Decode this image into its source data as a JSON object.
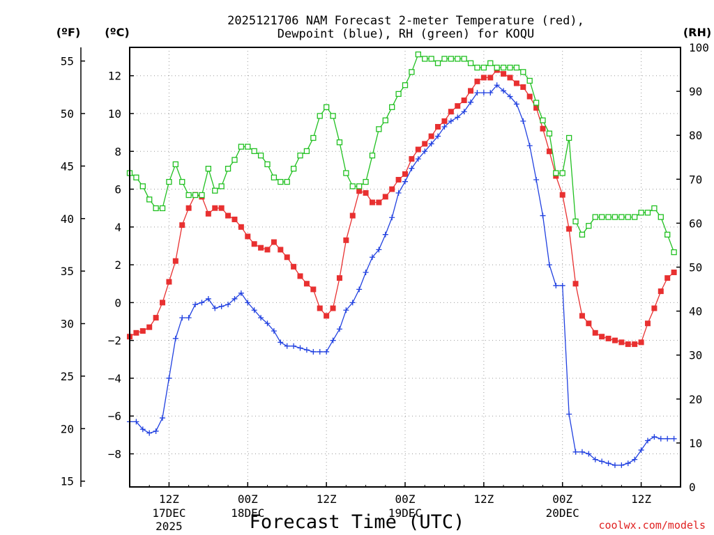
{
  "chart_data": {
    "type": "line",
    "title_line1": "2025121706 NAM Forecast 2-meter Temperature (red),",
    "title_line2": "Dewpoint (blue), RH (green) for KOQU",
    "xlabel": "Forecast Time (UTC)",
    "credit": "coolwx.com/models",
    "left_outer_unit": "(ºF)",
    "left_inner_unit": "(ºC)",
    "right_unit": "(RH)",
    "x_start_hour": 6,
    "x_end_hour": 90,
    "ylim_c": [
      -9.75,
      13.5
    ],
    "ylim_rh": [
      0,
      100
    ],
    "x_ticks": [
      {
        "hour": 12,
        "label": "12Z",
        "label2": "17DEC",
        "label3": "2025"
      },
      {
        "hour": 24,
        "label": "00Z",
        "label2": "18DEC",
        "label3": ""
      },
      {
        "hour": 36,
        "label": "12Z",
        "label2": "",
        "label3": ""
      },
      {
        "hour": 48,
        "label": "00Z",
        "label2": "19DEC",
        "label3": ""
      },
      {
        "hour": 60,
        "label": "12Z",
        "label2": "",
        "label3": ""
      },
      {
        "hour": 72,
        "label": "00Z",
        "label2": "20DEC",
        "label3": ""
      },
      {
        "hour": 84,
        "label": "12Z",
        "label2": "",
        "label3": ""
      }
    ],
    "yticks_c": [
      -8,
      -6,
      -4,
      -2,
      0,
      2,
      4,
      6,
      8,
      10,
      12
    ],
    "yticks_f": [
      15,
      20,
      25,
      30,
      35,
      40,
      45,
      50,
      55
    ],
    "yticks_rh": [
      0,
      10,
      20,
      30,
      40,
      50,
      60,
      70,
      80,
      90,
      100
    ],
    "series": [
      {
        "name": "Temperature",
        "color": "#e83030",
        "marker": "filled-square",
        "axis": "c",
        "values": [
          -1.8,
          -1.6,
          -1.5,
          -1.3,
          -0.8,
          0.0,
          1.1,
          2.2,
          4.1,
          5.0,
          5.7,
          5.6,
          4.7,
          5.0,
          5.0,
          4.6,
          4.4,
          4.0,
          3.5,
          3.1,
          2.9,
          2.8,
          3.2,
          2.8,
          2.4,
          1.9,
          1.4,
          1.0,
          0.7,
          -0.3,
          -0.7,
          -0.3,
          1.3,
          3.3,
          4.6,
          5.9,
          5.8,
          5.3,
          5.3,
          5.6,
          6.0,
          6.5,
          6.8,
          7.6,
          8.1,
          8.4,
          8.8,
          9.3,
          9.6,
          10.1,
          10.4,
          10.7,
          11.2,
          11.7,
          11.9,
          11.9,
          12.3,
          12.1,
          11.9,
          11.6,
          11.4,
          10.9,
          10.3,
          9.2,
          8.0,
          6.7,
          5.7,
          3.9,
          1.0,
          -0.7,
          -1.1,
          -1.6,
          -1.8,
          -1.9,
          -2.0,
          -2.1,
          -2.2,
          -2.2,
          -2.1,
          -1.1,
          -0.3,
          0.6,
          1.3,
          1.6
        ]
      },
      {
        "name": "Dewpoint",
        "color": "#2040e0",
        "marker": "plus",
        "axis": "c",
        "values": [
          -6.3,
          -6.3,
          -6.7,
          -6.9,
          -6.8,
          -6.1,
          -4.0,
          -1.9,
          -0.8,
          -0.8,
          -0.1,
          0.0,
          0.2,
          -0.3,
          -0.2,
          -0.1,
          0.2,
          0.5,
          0.0,
          -0.4,
          -0.8,
          -1.1,
          -1.5,
          -2.1,
          -2.3,
          -2.3,
          -2.4,
          -2.5,
          -2.6,
          -2.6,
          -2.6,
          -2.0,
          -1.4,
          -0.4,
          0.0,
          0.7,
          1.6,
          2.4,
          2.8,
          3.6,
          4.5,
          5.8,
          6.4,
          7.1,
          7.6,
          8.0,
          8.4,
          8.8,
          9.3,
          9.6,
          9.8,
          10.1,
          10.6,
          11.1,
          11.1,
          11.1,
          11.5,
          11.2,
          10.9,
          10.5,
          9.6,
          8.3,
          6.5,
          4.6,
          2.0,
          0.9,
          0.9,
          -5.9,
          -7.9,
          -7.9,
          -8.0,
          -8.3,
          -8.4,
          -8.5,
          -8.6,
          -8.6,
          -8.5,
          -8.3,
          -7.8,
          -7.3,
          -7.1,
          -7.2,
          -7.2,
          -7.2
        ]
      },
      {
        "name": "RH",
        "color": "#20c020",
        "marker": "open-square",
        "axis": "rh",
        "values": [
          71.4,
          70.4,
          68.4,
          65.4,
          63.4,
          63.4,
          69.4,
          73.4,
          69.4,
          66.4,
          66.4,
          66.4,
          72.4,
          67.4,
          68.4,
          72.4,
          74.4,
          77.4,
          77.4,
          76.4,
          75.4,
          73.4,
          70.4,
          69.4,
          69.4,
          72.4,
          75.4,
          76.4,
          79.4,
          84.4,
          86.4,
          84.4,
          78.4,
          71.4,
          68.4,
          68.4,
          69.4,
          75.4,
          81.4,
          83.4,
          86.4,
          89.4,
          91.4,
          94.4,
          98.4,
          97.4,
          97.4,
          96.4,
          97.4,
          97.4,
          97.4,
          97.4,
          96.4,
          95.4,
          95.4,
          96.4,
          95.4,
          95.4,
          95.4,
          95.4,
          94.4,
          92.4,
          87.4,
          83.4,
          80.4,
          71.4,
          71.4,
          79.4,
          60.4,
          57.4,
          59.4,
          61.4,
          61.4,
          61.4,
          61.4,
          61.4,
          61.4,
          61.4,
          62.4,
          62.4,
          63.4,
          61.4,
          57.4,
          53.4
        ]
      }
    ]
  }
}
